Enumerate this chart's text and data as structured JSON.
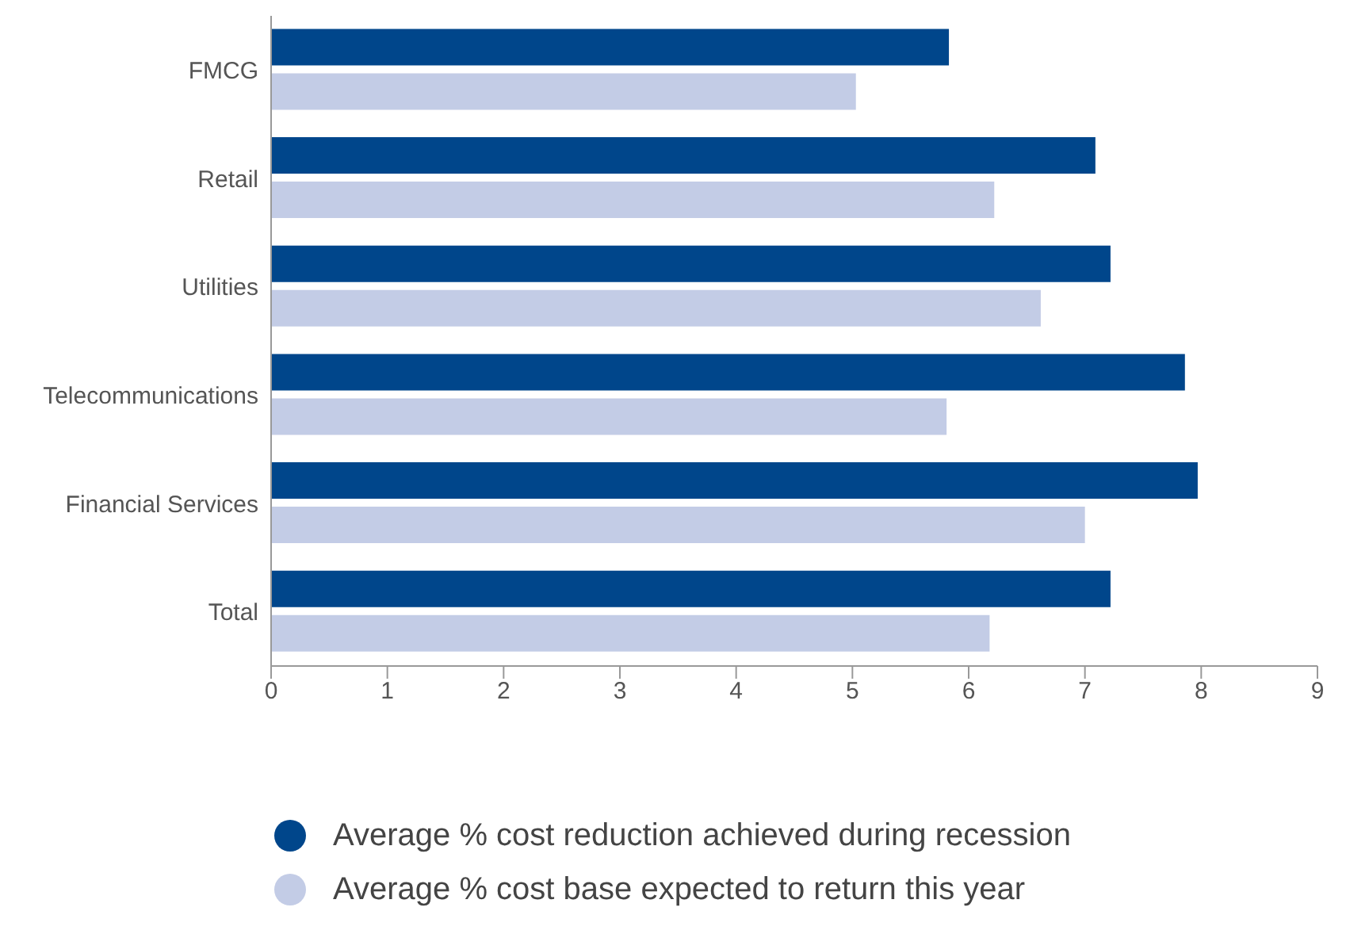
{
  "chart_data": {
    "type": "bar",
    "orientation": "horizontal",
    "categories": [
      "FMCG",
      "Retail",
      "Utilities",
      "Telecommunications",
      "Financial Services",
      "Total"
    ],
    "series": [
      {
        "name": "Average % cost reduction achieved during recession",
        "color": "#00468b",
        "values": [
          5.83,
          7.09,
          7.22,
          7.86,
          7.97,
          7.22
        ]
      },
      {
        "name": "Average % cost base expected to return this year",
        "color": "#c3cce6",
        "values": [
          5.03,
          6.22,
          6.62,
          5.81,
          7.0,
          6.18
        ]
      }
    ],
    "xlim": [
      0,
      9
    ],
    "xticks": [
      0,
      1,
      2,
      3,
      4,
      5,
      6,
      7,
      8,
      9
    ],
    "grid": false,
    "legend": "bottom"
  }
}
